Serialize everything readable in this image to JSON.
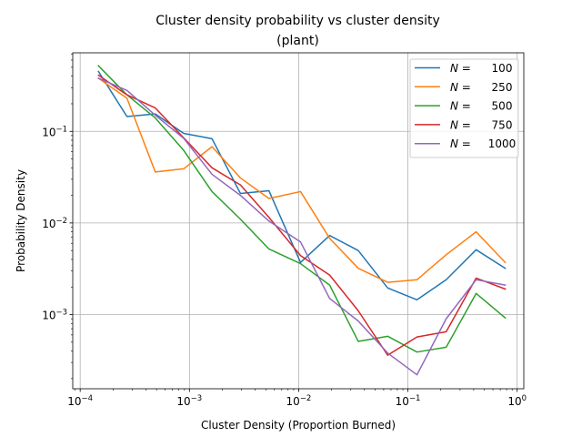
{
  "chart_data": {
    "type": "line",
    "title": "Cluster density probability vs cluster density",
    "subtitle": "(plant)",
    "xlabel": "Cluster Density (Proportion Burned)",
    "ylabel": "Probability Density",
    "xscale": "log",
    "yscale": "log",
    "xlim": [
      8.55e-05,
      1.15
    ],
    "ylim": [
      0.000155,
      0.72
    ],
    "grid": true,
    "legend_position": "top-right",
    "x_ticks": [
      {
        "value": 0.0001,
        "base": "10",
        "exp": "−4"
      },
      {
        "value": 0.001,
        "base": "10",
        "exp": "−3"
      },
      {
        "value": 0.01,
        "base": "10",
        "exp": "−2"
      },
      {
        "value": 0.1,
        "base": "10",
        "exp": "−1"
      },
      {
        "value": 1,
        "base": "10",
        "exp": "0"
      }
    ],
    "y_ticks": [
      {
        "value": 0.001,
        "base": "10",
        "exp": "−3"
      },
      {
        "value": 0.01,
        "base": "10",
        "exp": "−2"
      },
      {
        "value": 0.1,
        "base": "10",
        "exp": "−1"
      }
    ],
    "x": [
      0.000147,
      0.000268,
      0.000487,
      0.000886,
      0.00161,
      0.00293,
      0.00534,
      0.0104,
      0.0192,
      0.0351,
      0.0653,
      0.121,
      0.224,
      0.421,
      0.778
    ],
    "series": [
      {
        "name_prefix": "N",
        "name_value": "100",
        "color": "#1f77b4",
        "values": [
          0.45,
          0.145,
          0.155,
          0.095,
          0.083,
          0.021,
          0.0225,
          0.0037,
          0.0073,
          0.005,
          0.00195,
          0.00145,
          0.0024,
          0.0051,
          0.0032
        ]
      },
      {
        "name_prefix": "N",
        "name_value": "250",
        "color": "#ff7f0e",
        "values": [
          0.38,
          0.23,
          0.036,
          0.039,
          0.068,
          0.031,
          0.0185,
          0.022,
          0.0068,
          0.0032,
          0.00225,
          0.0024,
          0.0045,
          0.008,
          0.0037
        ]
      },
      {
        "name_prefix": "N",
        "name_value": "500",
        "color": "#2ca02c",
        "values": [
          0.52,
          0.25,
          0.14,
          0.062,
          0.022,
          0.011,
          0.0052,
          0.0036,
          0.0021,
          0.00051,
          0.00058,
          0.00039,
          0.00044,
          0.0017,
          0.00092
        ]
      },
      {
        "name_prefix": "N",
        "name_value": "750",
        "color": "#d62728",
        "values": [
          0.41,
          0.25,
          0.18,
          0.085,
          0.04,
          0.026,
          0.0115,
          0.0044,
          0.0027,
          0.0011,
          0.00036,
          0.00057,
          0.00065,
          0.0025,
          0.0019
        ]
      },
      {
        "name_prefix": "N",
        "name_value": "1000",
        "color": "#9467bd",
        "values": [
          0.38,
          0.28,
          0.15,
          0.084,
          0.034,
          0.02,
          0.0105,
          0.0062,
          0.0015,
          0.00085,
          0.00038,
          0.00022,
          0.0009,
          0.0024,
          0.0021
        ]
      }
    ]
  }
}
